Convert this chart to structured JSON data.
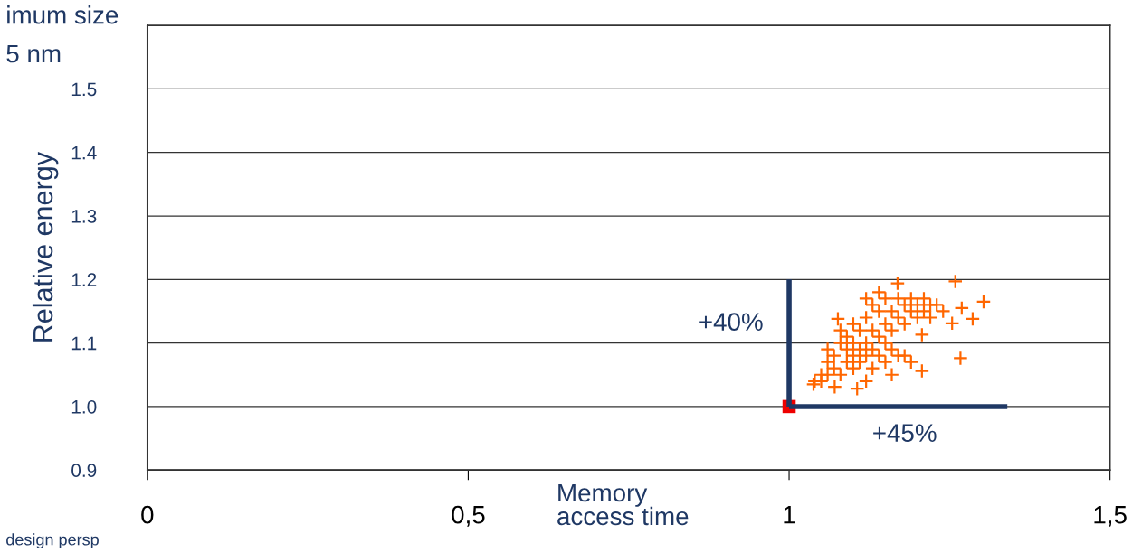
{
  "chart_data": {
    "type": "scatter",
    "xlabel": "Memory\naccess time",
    "ylabel": "Relative energy",
    "xlim": [
      0,
      1.5
    ],
    "xticks": [
      {
        "value": 0,
        "label": "0"
      },
      {
        "value": 0.5,
        "label": "0,5"
      },
      {
        "value": 1,
        "label": "1"
      },
      {
        "value": 1.5,
        "label": "1,5"
      }
    ],
    "ylim": [
      0.9,
      1.6
    ],
    "yticks": [
      {
        "value": 0.9,
        "label": "0.9"
      },
      {
        "value": 1.0,
        "label": "1.0"
      },
      {
        "value": 1.1,
        "label": "1.1"
      },
      {
        "value": 1.2,
        "label": "1.2"
      },
      {
        "value": 1.3,
        "label": "1.3"
      },
      {
        "value": 1.4,
        "label": "1.4"
      },
      {
        "value": 1.5,
        "label": "1.5"
      },
      {
        "value": 1.6,
        "label": null
      }
    ],
    "grid": "y",
    "series": [
      {
        "type": "line",
        "color": "#1f3864",
        "marker": "none",
        "x": [
          1.0,
          1.0
        ],
        "values": [
          1.0,
          1.2
        ]
      },
      {
        "type": "line",
        "color": "#1f3864",
        "marker": "none",
        "x": [
          1.0,
          1.34
        ],
        "values": [
          1.0,
          1.0
        ]
      },
      {
        "color": "#ee0000",
        "marker": "square",
        "x": [
          1.0
        ],
        "values": [
          1.0
        ]
      },
      {
        "color": "#ff6600",
        "marker": "cross",
        "x": [
          1.259,
          1.303,
          1.286,
          1.269,
          1.254,
          1.267,
          1.207,
          1.207,
          1.106,
          1.076,
          1.169,
          1.038,
          1.071,
          1.05,
          1.06,
          1.06,
          1.07,
          1.07,
          1.08,
          1.08,
          1.09,
          1.09,
          1.09,
          1.1,
          1.1,
          1.1,
          1.11,
          1.11,
          1.11,
          1.12,
          1.12,
          1.12,
          1.13,
          1.13,
          1.13,
          1.13,
          1.14,
          1.14,
          1.14,
          1.15,
          1.15,
          1.15,
          1.15,
          1.16,
          1.16,
          1.16,
          1.17,
          1.17,
          1.17,
          1.18,
          1.18,
          1.19,
          1.19,
          1.2,
          1.2,
          1.21,
          1.21,
          1.22,
          1.22,
          1.23,
          1.24,
          1.05,
          1.04,
          1.08,
          1.1,
          1.12,
          1.14,
          1.06,
          1.18,
          1.19,
          1.12,
          1.16
        ],
        "values": [
          1.197,
          1.165,
          1.138,
          1.155,
          1.131,
          1.076,
          1.056,
          1.113,
          1.028,
          1.138,
          1.194,
          1.035,
          1.031,
          1.05,
          1.07,
          1.09,
          1.06,
          1.08,
          1.1,
          1.05,
          1.07,
          1.09,
          1.11,
          1.06,
          1.08,
          1.1,
          1.07,
          1.09,
          1.12,
          1.08,
          1.1,
          1.14,
          1.06,
          1.09,
          1.12,
          1.16,
          1.08,
          1.11,
          1.15,
          1.07,
          1.1,
          1.13,
          1.17,
          1.09,
          1.12,
          1.15,
          1.08,
          1.14,
          1.17,
          1.13,
          1.16,
          1.15,
          1.17,
          1.14,
          1.16,
          1.15,
          1.17,
          1.16,
          1.14,
          1.16,
          1.15,
          1.04,
          1.04,
          1.12,
          1.13,
          1.17,
          1.18,
          1.05,
          1.08,
          1.07,
          1.04,
          1.05
        ]
      }
    ],
    "annotations": [
      "+40%",
      "+45%",
      "imum size",
      "5 nm",
      "design persp"
    ]
  }
}
